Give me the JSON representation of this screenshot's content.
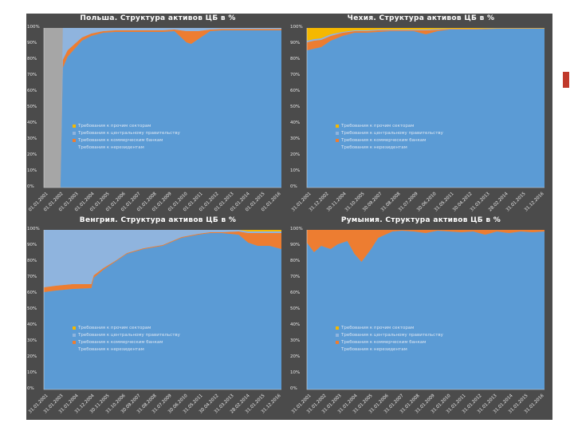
{
  "legend_colors": {
    "other": "#f5b800",
    "gov": "#8fb4de",
    "banks": "#ed7d31",
    "nonres": "#5b9bd5"
  },
  "chart_data": [
    {
      "type": "area",
      "title": "Польша. Структура активов ЦБ в %",
      "y_ticks": [
        "100%",
        "90%",
        "80%",
        "70%",
        "60%",
        "50%",
        "40%",
        "30%",
        "20%",
        "10%",
        "0%"
      ],
      "x_ticks": [
        "01.01.2001",
        "01.01.2002",
        "01.01.2003",
        "01.01.2004",
        "01.01.2005",
        "01.01.2006",
        "01.01.2007",
        "01.01.2008",
        "01.01.2009",
        "01.01.2010",
        "01.01.2011",
        "01.01.2012",
        "01.01.2013",
        "01.01.2014",
        "01.01.2015",
        "01.01.2016"
      ],
      "legend": [
        "Требования к прочим секторам",
        "Требования к центральному правительству",
        "Требования к коммерческим банкам",
        "Требования к нерезидентам"
      ],
      "ylim": [
        0,
        100
      ],
      "t": [
        0,
        0.07,
        0.08,
        0.1,
        0.13,
        0.16,
        0.2,
        0.25,
        0.3,
        0.4,
        0.5,
        0.55,
        0.6,
        0.62,
        0.65,
        0.7,
        0.75,
        0.8,
        0.9,
        1
      ],
      "series": [
        {
          "name": "Требования к нерезидентам",
          "values": [
            0,
            0,
            75,
            82,
            87,
            92,
            95,
            97,
            97.5,
            97.5,
            97.5,
            98,
            91,
            90,
            93,
            98,
            98.5,
            98.5,
            98.5,
            98.5
          ]
        },
        {
          "name": "Требования к коммерческим банкам",
          "values": [
            0,
            0,
            5,
            4,
            3,
            2,
            1.5,
            1,
            1,
            1,
            1,
            1,
            7,
            8,
            5,
            1,
            0.8,
            0.8,
            0.8,
            0.8
          ]
        },
        {
          "name": "Требования к центральному правительству",
          "values": [
            0,
            0,
            20,
            14,
            10,
            6,
            3.5,
            2,
            1.5,
            1.5,
            1.5,
            1,
            2,
            2,
            2,
            1,
            0.7,
            0.7,
            0.7,
            0.7
          ]
        },
        {
          "name": "Требования к прочим секторам",
          "values": [
            0,
            0,
            0,
            0,
            0,
            0,
            0,
            0,
            0,
            0,
            0,
            0,
            0,
            0,
            0,
            0,
            0,
            0,
            0,
            0
          ]
        }
      ]
    },
    {
      "type": "area",
      "title": "Чехия. Структура активов ЦБ в %",
      "y_ticks": [
        "100%",
        "90%",
        "80%",
        "70%",
        "60%",
        "50%",
        "40%",
        "30%",
        "20%",
        "10%",
        "0%"
      ],
      "x_ticks": [
        "31.01.2001",
        "31.12.2002",
        "30.11.2004",
        "31.10.2005",
        "30.09.2007",
        "31.08.2008",
        "31.07.2009",
        "30.06.2010",
        "31.05.2011",
        "30.04.2012",
        "31.03.2013",
        "28.02.2014",
        "31.01.2015",
        "31.12.2016"
      ],
      "legend": [
        "Требования к прочим секторам",
        "Требования к центральному правительству",
        "Требования к коммерческим банкам",
        "Требования к нерезидентам"
      ],
      "ylim": [
        0,
        100
      ],
      "t": [
        0,
        0.03,
        0.06,
        0.1,
        0.15,
        0.2,
        0.25,
        0.3,
        0.35,
        0.45,
        0.5,
        0.55,
        0.6,
        0.7,
        0.8,
        0.9,
        1
      ],
      "series": [
        {
          "name": "Требования к нерезидентам",
          "values": [
            86,
            87,
            88,
            92,
            95,
            97,
            97,
            97.5,
            98,
            98,
            96,
            98,
            99,
            99,
            99.5,
            99.5,
            99.5
          ]
        },
        {
          "name": "Требования к коммерческим банкам",
          "values": [
            5,
            5,
            4.5,
            3,
            2,
            1,
            1,
            1,
            0.5,
            0.5,
            2.5,
            0.8,
            0.3,
            0.3,
            0.2,
            0.2,
            0.2
          ]
        },
        {
          "name": "Требования к центральному правительству",
          "values": [
            1,
            1,
            1,
            1,
            0.5,
            0.5,
            0.5,
            0.5,
            0.5,
            0.5,
            0.5,
            0.5,
            0.2,
            0.2,
            0.1,
            0.1,
            0.1
          ]
        },
        {
          "name": "Требования к прочим секторам",
          "values": [
            8,
            7,
            6.5,
            4,
            2.5,
            1.5,
            1.5,
            1,
            1,
            1,
            1,
            0.7,
            0.5,
            0.5,
            0.2,
            0.2,
            0.2
          ]
        }
      ]
    },
    {
      "type": "area",
      "title": "Венгрия. Структура активов ЦБ в %",
      "y_ticks": [
        "100%",
        "90%",
        "80%",
        "70%",
        "60%",
        "50%",
        "40%",
        "30%",
        "20%",
        "10%",
        "0%"
      ],
      "x_ticks": [
        "31.01.2001",
        "31.01.2003",
        "31.01.2004",
        "31.12.2004",
        "30.11.2005",
        "31.10.2006",
        "30.09.2007",
        "31.08.2008",
        "31.07.2009",
        "30.06.2010",
        "31.05.2011",
        "30.04.2012",
        "31.03.2013",
        "28.02.2014",
        "31.01.2015",
        "31.12.2016"
      ],
      "legend": [
        "Требования к прочим секторам",
        "Требования к центральному правительству",
        "Требования к коммерческим банкам",
        "Требования к нерезидентам"
      ],
      "ylim": [
        0,
        100
      ],
      "t": [
        0,
        0.05,
        0.12,
        0.2,
        0.21,
        0.25,
        0.3,
        0.35,
        0.42,
        0.5,
        0.58,
        0.65,
        0.7,
        0.75,
        0.82,
        0.86,
        0.9,
        0.95,
        1
      ],
      "series": [
        {
          "name": "Требования к нерезидентам",
          "values": [
            61,
            62,
            63,
            63.5,
            70,
            75,
            80,
            85,
            88,
            90,
            95,
            97,
            98,
            98,
            97,
            92,
            90,
            90,
            88
          ]
        },
        {
          "name": "Требования к коммерческим банкам",
          "values": [
            3,
            3,
            3,
            2.5,
            1.5,
            1,
            0.5,
            0.5,
            0.5,
            0.5,
            0.5,
            0.5,
            0.5,
            0.5,
            2,
            6,
            8,
            8,
            10
          ]
        },
        {
          "name": "Требования к центральному правительству",
          "values": [
            36,
            35,
            34,
            34,
            28.5,
            24,
            19.5,
            14.5,
            11.5,
            9.5,
            4.5,
            2.5,
            1.5,
            1.5,
            1,
            1,
            1,
            1,
            1
          ]
        },
        {
          "name": "Требования к прочим секторам",
          "values": [
            0,
            0,
            0,
            0,
            0,
            0,
            0,
            0,
            0,
            0,
            0,
            0,
            0,
            0,
            0,
            1,
            1,
            1,
            1
          ]
        }
      ]
    },
    {
      "type": "area",
      "title": "Румыния. Структура активов ЦБ в %",
      "y_ticks": [
        "100%",
        "90%",
        "80%",
        "70%",
        "60%",
        "50%",
        "40%",
        "30%",
        "20%",
        "10%",
        "0%"
      ],
      "x_ticks": [
        "31.01.2001",
        "31.01.2002",
        "31.01.2003",
        "31.01.2004",
        "31.01.2005",
        "31.01.2006",
        "31.01.2007",
        "31.01.2008",
        "31.01.2009",
        "31.01.2010",
        "31.01.2011",
        "31.01.2012",
        "31.01.2013",
        "31.01.2014",
        "31.01.2015",
        "31.01.2016"
      ],
      "legend": [
        "Требования к прочим секторам",
        "Требования к центральному правительству",
        "Требования к коммерческим банкам",
        "Требования к нерезидентам"
      ],
      "ylim": [
        0,
        100
      ],
      "t": [
        0,
        0.03,
        0.06,
        0.1,
        0.13,
        0.17,
        0.2,
        0.23,
        0.27,
        0.3,
        0.33,
        0.36,
        0.4,
        0.45,
        0.5,
        0.55,
        0.6,
        0.65,
        0.7,
        0.75,
        0.8,
        0.85,
        0.9,
        0.95,
        1
      ],
      "series": [
        {
          "name": "Требования к нерезидентам",
          "values": [
            92,
            86,
            90,
            88,
            91,
            93,
            85,
            80,
            88,
            95,
            97,
            99,
            99.5,
            99,
            98,
            99.5,
            99,
            98.5,
            99,
            97,
            99,
            98,
            99,
            98.5,
            99
          ]
        },
        {
          "name": "Требования к коммерческим банкам",
          "values": [
            8,
            14,
            10,
            12,
            9,
            7,
            15,
            20,
            12,
            5,
            3,
            1,
            0.5,
            1,
            2,
            0.5,
            1,
            1.5,
            1,
            3,
            1,
            2,
            1,
            1.5,
            1
          ]
        },
        {
          "name": "Требования к центральному правительству",
          "values": [
            0,
            0,
            0,
            0,
            0,
            0,
            0,
            0,
            0,
            0,
            0,
            0,
            0,
            0,
            0,
            0,
            0,
            0,
            0,
            0,
            0,
            0,
            0,
            0,
            0
          ]
        },
        {
          "name": "Требования к прочим секторам",
          "values": [
            0,
            0,
            0,
            0,
            0,
            0,
            0,
            0,
            0,
            0,
            0,
            0,
            0,
            0,
            0,
            0,
            0,
            0,
            0,
            0,
            0,
            0,
            0,
            0,
            0
          ]
        }
      ]
    }
  ]
}
